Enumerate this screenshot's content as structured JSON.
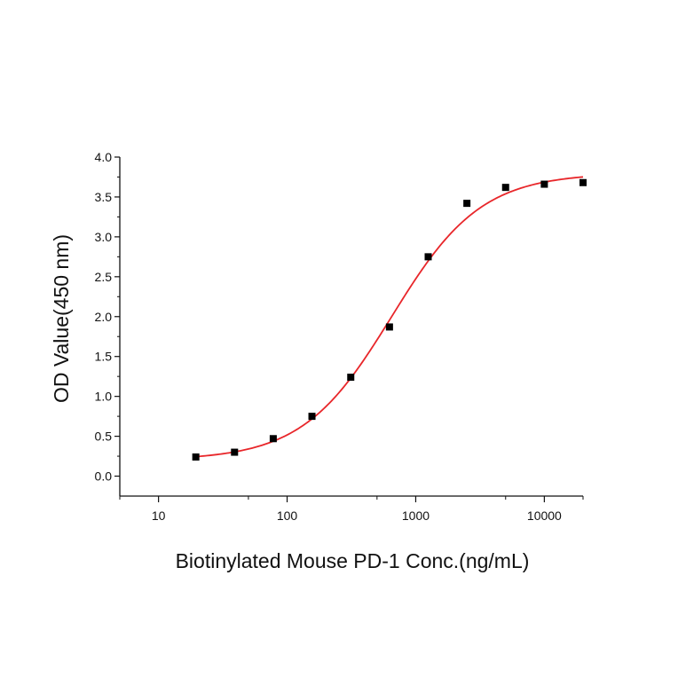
{
  "chart_data": {
    "type": "scatter",
    "xlabel": "Biotinylated Mouse PD-1 Conc.(ng/mL)",
    "ylabel": "OD Value(450 nm)",
    "x_scale": "log",
    "xlim": [
      5,
      20000
    ],
    "ylim": [
      -0.25,
      4.0
    ],
    "x_ticks": [
      10,
      100,
      1000,
      10000
    ],
    "x_tick_labels": [
      "10",
      "100",
      "1000",
      "10000"
    ],
    "y_ticks": [
      0.0,
      0.5,
      1.0,
      1.5,
      2.0,
      2.5,
      3.0,
      3.5,
      4.0
    ],
    "y_tick_labels": [
      "0.0",
      "0.5",
      "1.0",
      "1.5",
      "2.0",
      "2.5",
      "3.0",
      "3.5",
      "4.0"
    ],
    "grid": false,
    "series": [
      {
        "marker": "square",
        "color": "#000000",
        "x": [
          19.5,
          39,
          78,
          156,
          312.5,
          625,
          1250,
          2500,
          5000,
          10000,
          20000
        ],
        "y": [
          0.24,
          0.3,
          0.47,
          0.75,
          1.24,
          1.87,
          2.75,
          3.42,
          3.62,
          3.66,
          3.68
        ]
      }
    ],
    "fit_curve": {
      "type": "4PL",
      "color": "#e8262a",
      "bottom": 0.2,
      "top": 3.8,
      "ec50": 650,
      "hill": 1.25,
      "x_range": [
        19.5,
        20000
      ]
    }
  }
}
